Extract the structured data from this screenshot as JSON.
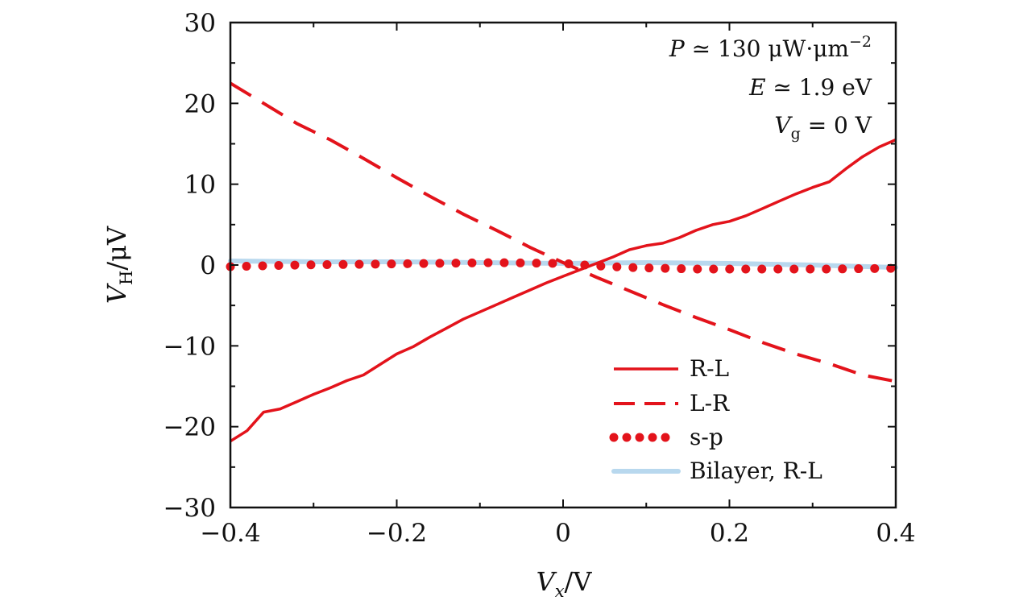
{
  "chart_data": {
    "type": "line",
    "xlabel": "V_x/V",
    "ylabel": "V_H/μV",
    "xlim": [
      -0.4,
      0.4
    ],
    "ylim": [
      -30,
      30
    ],
    "x_ticks": [
      "−0.4",
      "−0.2",
      "0",
      "0.2",
      "0.4"
    ],
    "y_ticks": [
      "30",
      "20",
      "10",
      "0",
      "−10",
      "−20",
      "−30"
    ],
    "x_tick_values": [
      -0.4,
      -0.2,
      0,
      0.2,
      0.4
    ],
    "y_tick_values": [
      30,
      20,
      10,
      0,
      -10,
      -20,
      -30
    ],
    "annotations": [
      "P ≃ 130 μW·μm⁻²",
      "E ≃ 1.9 eV",
      "V_g = 0 V"
    ],
    "legend_position": "bottom-right",
    "grid": false,
    "series": [
      {
        "name": "R-L",
        "style": "solid",
        "color": "#e3131b",
        "x": [
          -0.4,
          -0.38,
          -0.36,
          -0.34,
          -0.32,
          -0.3,
          -0.28,
          -0.26,
          -0.24,
          -0.22,
          -0.2,
          -0.18,
          -0.16,
          -0.14,
          -0.12,
          -0.1,
          -0.08,
          -0.06,
          -0.04,
          -0.02,
          0,
          0.02,
          0.04,
          0.06,
          0.08,
          0.1,
          0.12,
          0.14,
          0.16,
          0.18,
          0.2,
          0.22,
          0.24,
          0.26,
          0.28,
          0.3,
          0.32,
          0.34,
          0.36,
          0.38,
          0.4
        ],
        "y": [
          -21.8,
          -20.5,
          -18.2,
          -17.8,
          -16.9,
          -16.0,
          -15.2,
          -14.3,
          -13.6,
          -12.3,
          -11.0,
          -10.1,
          -8.9,
          -7.8,
          -6.7,
          -5.8,
          -4.9,
          -4.0,
          -3.1,
          -2.2,
          -1.4,
          -0.6,
          0.2,
          1.0,
          1.9,
          2.4,
          2.7,
          3.4,
          4.3,
          5.0,
          5.4,
          6.1,
          7.0,
          7.9,
          8.8,
          9.6,
          10.3,
          11.9,
          13.4,
          14.6,
          15.5
        ]
      },
      {
        "name": "L-R",
        "style": "dashed",
        "color": "#e3131b",
        "x": [
          -0.4,
          -0.36,
          -0.32,
          -0.28,
          -0.24,
          -0.2,
          -0.16,
          -0.12,
          -0.08,
          -0.04,
          0,
          0.04,
          0.08,
          0.12,
          0.16,
          0.2,
          0.24,
          0.28,
          0.32,
          0.36,
          0.4
        ],
        "y": [
          22.5,
          20.0,
          17.5,
          15.5,
          13.2,
          10.8,
          8.5,
          6.3,
          4.3,
          2.2,
          0.3,
          -1.5,
          -3.2,
          -4.9,
          -6.5,
          -8.0,
          -9.6,
          -11.0,
          -12.2,
          -13.6,
          -14.4
        ]
      },
      {
        "name": "s-p",
        "style": "dotted",
        "color": "#e3131b",
        "x": [
          -0.4,
          -0.32,
          -0.24,
          -0.16,
          -0.08,
          0,
          0.04,
          0.08,
          0.16,
          0.24,
          0.32,
          0.4
        ],
        "y": [
          -0.2,
          0.0,
          0.1,
          0.2,
          0.3,
          0.2,
          -0.1,
          -0.3,
          -0.5,
          -0.5,
          -0.5,
          -0.4
        ]
      },
      {
        "name": "Bilayer, R-L",
        "style": "solid",
        "color": "#b8d8ee",
        "x": [
          -0.4,
          -0.3,
          -0.2,
          -0.1,
          0,
          0.1,
          0.2,
          0.3,
          0.4
        ],
        "y": [
          0.5,
          0.4,
          0.4,
          0.3,
          0.2,
          0.3,
          0.2,
          0.0,
          -0.3
        ]
      }
    ]
  }
}
